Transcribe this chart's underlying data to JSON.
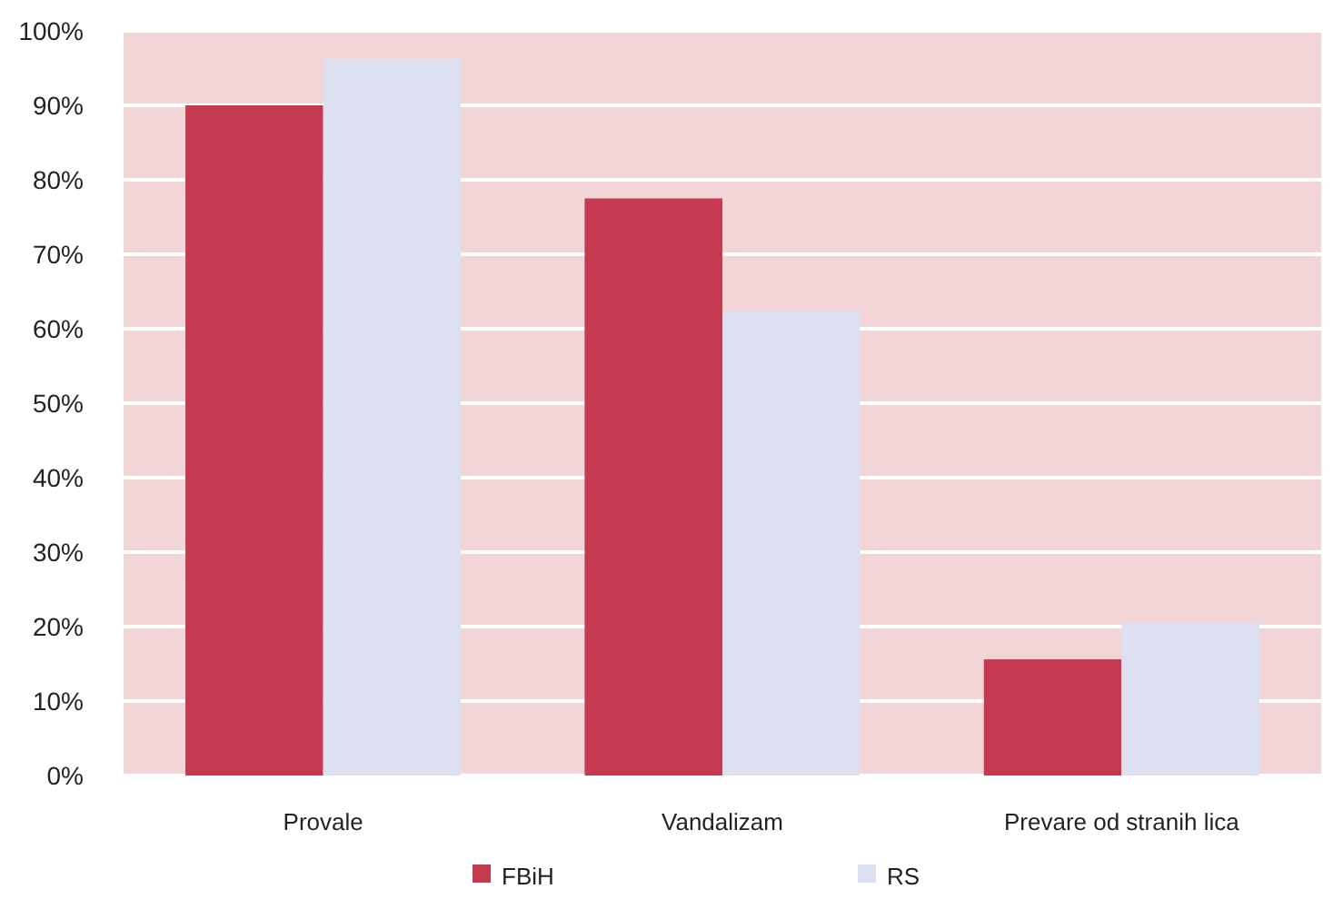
{
  "chart_data": {
    "type": "bar",
    "categories": [
      "Provale",
      "Vandalizam",
      "Prevare od stranih lica"
    ],
    "series": [
      {
        "name": "FBiH",
        "color": "#c53a50",
        "values": [
          90,
          77.5,
          15.6
        ]
      },
      {
        "name": "RS",
        "color": "#dde0f0",
        "values": [
          96.2,
          62.4,
          20.5
        ]
      }
    ],
    "ylim": [
      0,
      100
    ],
    "yticks": [
      {
        "value": 0,
        "label": "0%"
      },
      {
        "value": 10,
        "label": "10%"
      },
      {
        "value": 20,
        "label": "20%"
      },
      {
        "value": 30,
        "label": "30%"
      },
      {
        "value": 40,
        "label": "40%"
      },
      {
        "value": 50,
        "label": "50%"
      },
      {
        "value": 60,
        "label": "60%"
      },
      {
        "value": 70,
        "label": "70%"
      },
      {
        "value": 80,
        "label": "80%"
      },
      {
        "value": 90,
        "label": "90%"
      },
      {
        "value": 100,
        "label": "100%"
      }
    ],
    "grid": "y",
    "legend": "bottom"
  }
}
